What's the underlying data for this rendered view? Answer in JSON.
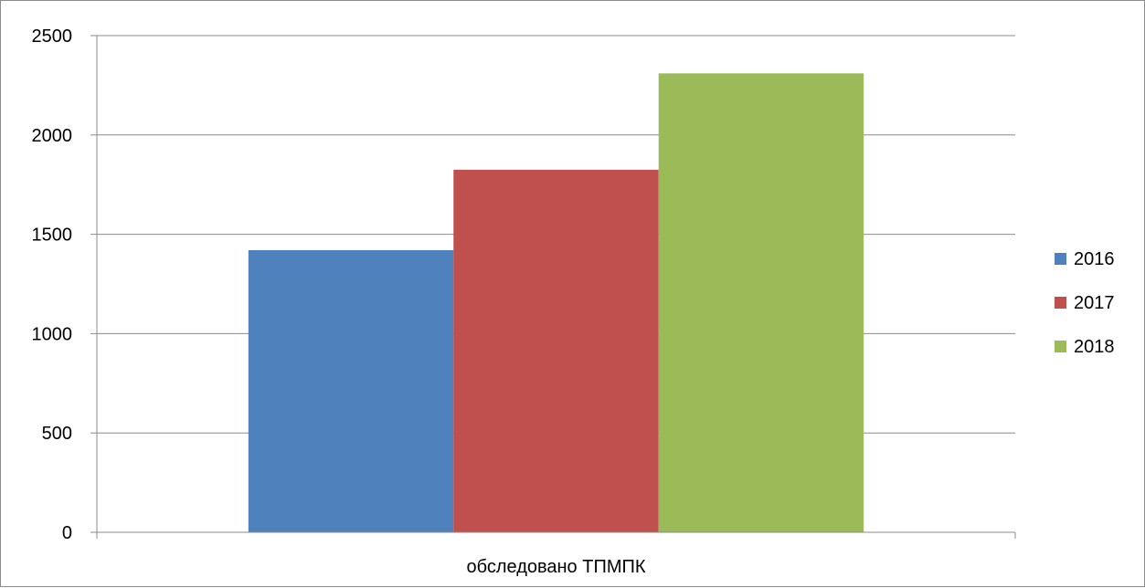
{
  "chart_data": {
    "type": "bar",
    "categories": [
      "обследовано ТПМПК"
    ],
    "series": [
      {
        "name": "2016",
        "values": [
          1420
        ],
        "color": "#4f81bd"
      },
      {
        "name": "2017",
        "values": [
          1825
        ],
        "color": "#c0504d"
      },
      {
        "name": "2018",
        "values": [
          2310
        ],
        "color": "#9bbb59"
      }
    ],
    "title": "",
    "xlabel": "",
    "ylabel": "",
    "ylim": [
      0,
      2500
    ],
    "yticks": [
      "0",
      "500",
      "1000",
      "1500",
      "2000",
      "2500"
    ],
    "grid": true,
    "legend": "right"
  }
}
